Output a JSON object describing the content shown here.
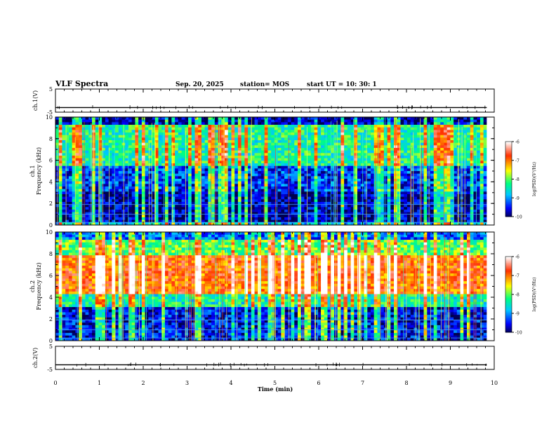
{
  "header": {
    "title": "VLF Spectra",
    "date": "Sep. 20, 2025",
    "station": "station= MOS",
    "start_ut": "start UT =  10: 30: 1"
  },
  "chart_data": {
    "type": "heatmap",
    "x": {
      "label": "Time (min)",
      "range": [
        0,
        10
      ],
      "ticks": [
        "0",
        "1",
        "2",
        "3",
        "4",
        "5",
        "6",
        "7",
        "8",
        "9",
        "10"
      ],
      "data_end": 9.83
    },
    "panels": [
      {
        "name": "ch1-waveform",
        "type": "line",
        "ylabel": "ch.1(V)",
        "yrange": [
          -5,
          5
        ],
        "yticks": [
          "5",
          "-5"
        ],
        "baseline": -3
      },
      {
        "name": "ch1-spectrogram",
        "type": "heatmap",
        "ylabel": "ch.1\nFrequency (kHz)",
        "ylabel_lines": [
          "ch.1",
          "Frequency (kHz)"
        ],
        "yrange": [
          0,
          10
        ],
        "yticks": [
          "0",
          "2",
          "4",
          "6",
          "8",
          "10"
        ],
        "profile": "ch1"
      },
      {
        "name": "ch2-spectrogram",
        "type": "heatmap",
        "ylabel_lines": [
          "ch.2",
          "Frequency (kHz)"
        ],
        "yrange": [
          0,
          10
        ],
        "yticks": [
          "0",
          "2",
          "4",
          "6",
          "8",
          "10"
        ],
        "profile": "ch2"
      },
      {
        "name": "ch2-waveform",
        "type": "line",
        "ylabel": "ch.2(V)",
        "yrange": [
          -5,
          5
        ],
        "yticks": [
          "5",
          "-5"
        ],
        "baseline": -3
      }
    ],
    "colorbar": {
      "label": "log(PSD)(V²/Hz)",
      "range": [
        -10,
        -6
      ],
      "ticks": [
        "-6",
        "-7",
        "-8",
        "-9",
        "-10"
      ],
      "colormap": [
        "#000050",
        "#0000ff",
        "#00c8ff",
        "#00ff80",
        "#ffff00",
        "#ff3000",
        "#ffffff"
      ]
    }
  }
}
